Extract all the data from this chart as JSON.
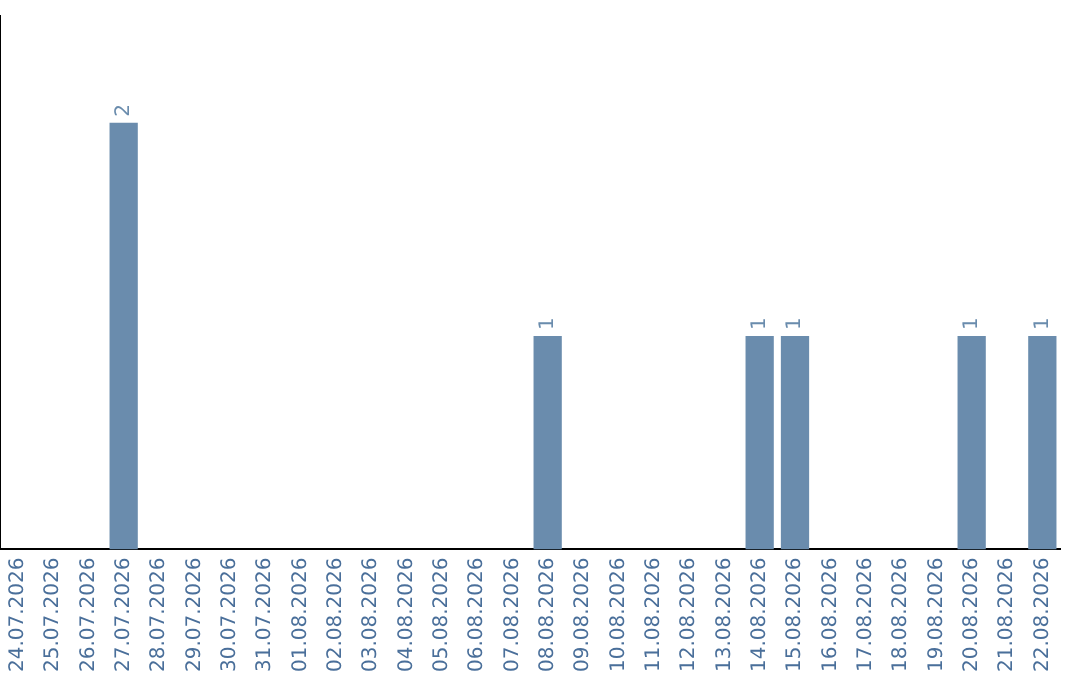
{
  "chart_data": {
    "type": "bar",
    "categories": [
      "24.07.2026",
      "25.07.2026",
      "26.07.2026",
      "27.07.2026",
      "28.07.2026",
      "29.07.2026",
      "30.07.2026",
      "31.07.2026",
      "01.08.2026",
      "02.08.2026",
      "03.08.2026",
      "04.08.2026",
      "05.08.2026",
      "06.08.2026",
      "07.08.2026",
      "08.08.2026",
      "09.08.2026",
      "10.08.2026",
      "11.08.2026",
      "12.08.2026",
      "13.08.2026",
      "14.08.2026",
      "15.08.2026",
      "16.08.2026",
      "17.08.2026",
      "18.08.2026",
      "19.08.2026",
      "20.08.2026",
      "21.08.2026",
      "22.08.2026"
    ],
    "values": [
      0,
      0,
      0,
      2,
      0,
      0,
      0,
      0,
      0,
      0,
      0,
      0,
      0,
      0,
      0,
      1,
      0,
      0,
      0,
      0,
      0,
      1,
      1,
      0,
      0,
      0,
      0,
      1,
      0,
      1
    ],
    "value_labels": [
      null,
      null,
      null,
      "2",
      null,
      null,
      null,
      null,
      null,
      null,
      null,
      null,
      null,
      null,
      null,
      "1",
      null,
      null,
      null,
      null,
      null,
      "1",
      "1",
      null,
      null,
      null,
      null,
      "1",
      null,
      "1"
    ],
    "color": "#6a8cad",
    "grid": false,
    "legend": false,
    "tick_labels": "x"
  }
}
